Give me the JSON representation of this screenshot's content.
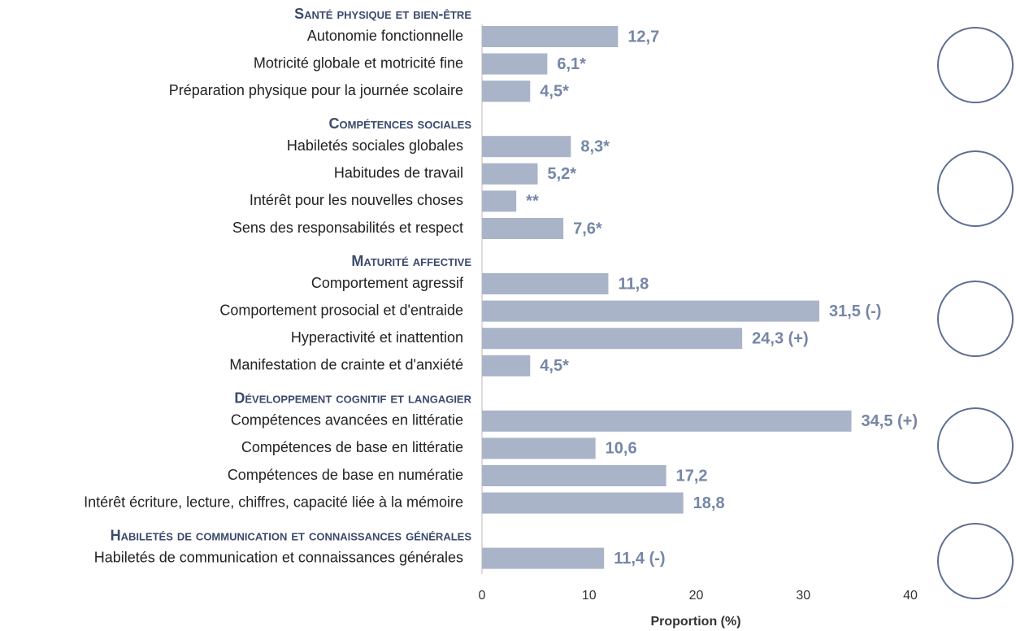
{
  "chart_data": {
    "type": "bar",
    "x_label": "Proportion (%)",
    "color": "#a9b4c9",
    "xlim": [
      0,
      40
    ],
    "xticks": [
      0,
      10,
      20,
      30,
      40
    ],
    "grid": false,
    "groups": [
      {
        "title": "Santé physique et bien-être",
        "categories": [
          "Autonomie fonctionnelle",
          "Motricité globale et motricité fine",
          "Préparation physique pour la journée scolaire"
        ],
        "values": [
          12.7,
          6.1,
          4.5
        ],
        "value_labels": [
          "12,7",
          "6,1*",
          "4,5*"
        ]
      },
      {
        "title": "Compétences sociales",
        "categories": [
          "Habiletés sociales globales",
          "Habitudes de travail",
          "Intérêt pour les nouvelles choses",
          "Sens des responsabilités et respect"
        ],
        "values": [
          8.3,
          5.2,
          3.2,
          7.6
        ],
        "value_labels": [
          "8,3*",
          "5,2*",
          "**",
          "7,6*"
        ]
      },
      {
        "title": "Maturité affective",
        "categories": [
          "Comportement agressif",
          "Comportement prosocial et d'entraide",
          "Hyperactivité et inattention",
          "Manifestation de crainte et d'anxiété"
        ],
        "values": [
          11.8,
          31.5,
          24.3,
          4.5
        ],
        "value_labels": [
          "11,8",
          "31,5 (-)",
          "24,3 (+)",
          "4,5*"
        ]
      },
      {
        "title": "Développement cognitif et langagier",
        "categories": [
          "Compétences avancées en littératie",
          "Compétences de base en littératie",
          "Compétences de base en numératie",
          "Intérêt écriture, lecture, chiffres, capacité liée à la mémoire"
        ],
        "values": [
          34.5,
          10.6,
          17.2,
          18.8
        ],
        "value_labels": [
          "34,5 (+)",
          "10,6",
          "17,2",
          "18,8"
        ]
      },
      {
        "title": "Habiletés de communication et connaissances générales",
        "categories": [
          "Habiletés de communication et connaissances générales"
        ],
        "values": [
          11.4
        ],
        "value_labels": [
          "11,4 (-)"
        ]
      }
    ]
  }
}
